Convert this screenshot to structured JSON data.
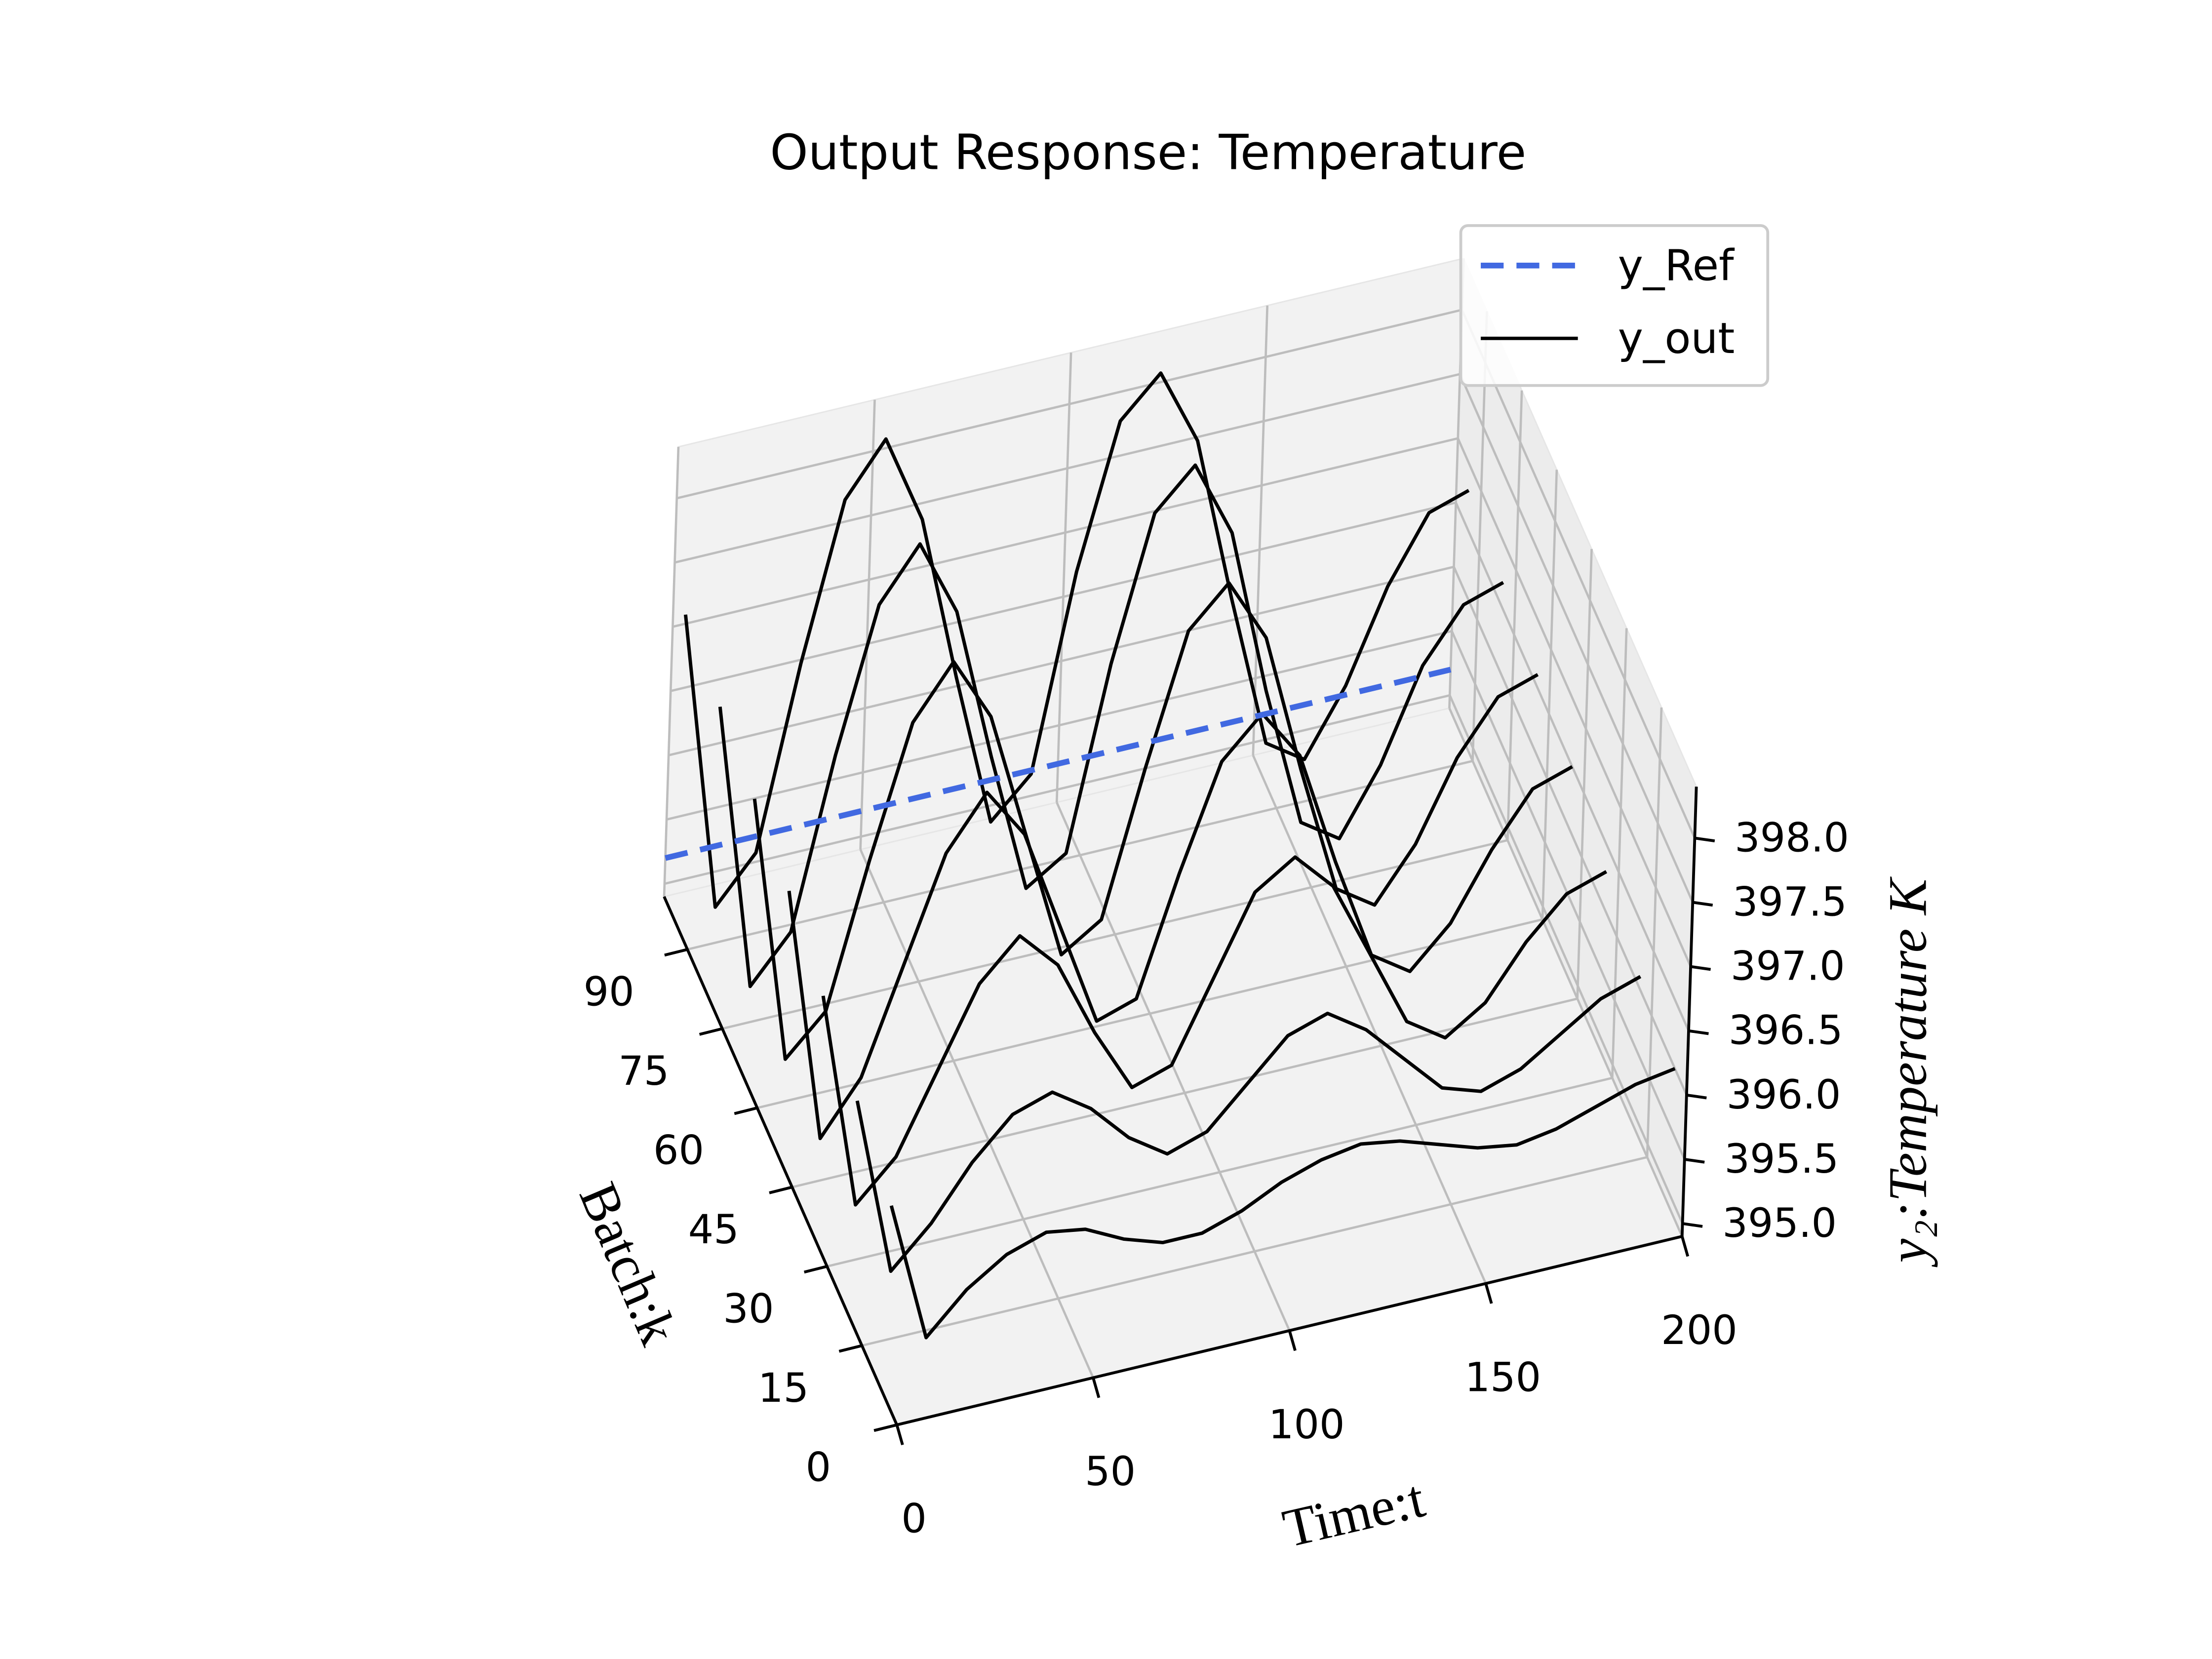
{
  "chart_data": {
    "type": "line3d",
    "title": "Output Response: Temperature",
    "xlabel": "Time:t",
    "ylabel": "Batch:k",
    "zlabel": "y₂:Temperature K",
    "xlim": [
      0,
      200
    ],
    "ylim": [
      0,
      100
    ],
    "zlim": [
      394.9,
      398.4
    ],
    "xticks": [
      0,
      50,
      100,
      150,
      200
    ],
    "yticks": [
      0,
      15,
      30,
      45,
      60,
      75,
      90
    ],
    "zticks": [
      {
        "value": 395,
        "label": "395.0"
      },
      {
        "value": 395.5,
        "label": "395.5"
      },
      {
        "value": 396,
        "label": "396.0"
      },
      {
        "value": 396.5,
        "label": "396.5"
      },
      {
        "value": 397,
        "label": "397.0"
      },
      {
        "value": 397.5,
        "label": "397.5"
      },
      {
        "value": 398,
        "label": "398.0"
      }
    ],
    "grid": true,
    "legend": "upper right",
    "x": [
      0,
      10,
      20,
      30,
      40,
      50,
      60,
      70,
      80,
      90,
      100,
      110,
      120,
      130,
      140,
      150,
      160,
      170,
      180,
      190,
      200
    ],
    "reference": {
      "name": "y_Ref",
      "color": "#4169e1",
      "batch": 100,
      "x": [
        0,
        200
      ],
      "values": [
        395.2,
        395.2
      ]
    },
    "outputs": {
      "name": "y_out",
      "color": "#000000",
      "series": [
        {
          "batch": 5,
          "values": [
            396.4,
            395.3,
            395.6,
            395.8,
            395.9,
            395.85,
            395.7,
            395.6,
            395.6,
            395.7,
            395.85,
            395.95,
            396.0,
            395.95,
            395.85,
            395.75,
            395.7,
            395.75,
            395.85,
            395.95,
            396.0
          ]
        },
        {
          "batch": 20,
          "values": [
            396.6,
            395.2,
            395.5,
            395.9,
            396.2,
            396.3,
            396.1,
            395.8,
            395.6,
            395.7,
            396.0,
            396.3,
            396.4,
            396.2,
            395.9,
            395.6,
            395.5,
            395.6,
            395.8,
            396.0,
            396.1
          ]
        },
        {
          "batch": 35,
          "values": [
            396.8,
            395.1,
            395.4,
            396.0,
            396.6,
            396.9,
            396.6,
            396.0,
            395.5,
            395.6,
            396.2,
            396.8,
            397.0,
            396.7,
            396.1,
            395.5,
            395.3,
            395.5,
            395.9,
            396.2,
            396.3
          ]
        },
        {
          "batch": 50,
          "values": [
            397.0,
            395.0,
            395.4,
            396.2,
            397.0,
            397.4,
            397.0,
            396.2,
            395.4,
            395.5,
            396.4,
            397.2,
            397.5,
            397.1,
            396.2,
            395.4,
            395.2,
            395.5,
            396.0,
            396.4,
            396.5
          ]
        },
        {
          "batch": 65,
          "values": [
            397.1,
            395.0,
            395.3,
            396.4,
            397.4,
            397.8,
            397.3,
            396.3,
            395.3,
            395.5,
            396.6,
            397.6,
            397.9,
            397.4,
            396.3,
            395.3,
            395.1,
            395.5,
            396.1,
            396.5,
            396.6
          ]
        },
        {
          "batch": 80,
          "values": [
            397.2,
            394.95,
            395.3,
            396.6,
            397.7,
            398.1,
            397.5,
            396.3,
            395.2,
            395.4,
            396.8,
            397.9,
            398.2,
            397.6,
            396.3,
            395.2,
            395.0,
            395.5,
            396.2,
            396.6,
            396.7
          ]
        },
        {
          "batch": 95,
          "values": [
            397.3,
            394.95,
            395.3,
            396.7,
            397.9,
            398.3,
            397.6,
            396.3,
            395.1,
            395.4,
            396.9,
            398.0,
            398.3,
            397.7,
            396.4,
            395.2,
            395.0,
            395.5,
            396.2,
            396.7,
            396.8
          ]
        }
      ]
    }
  }
}
